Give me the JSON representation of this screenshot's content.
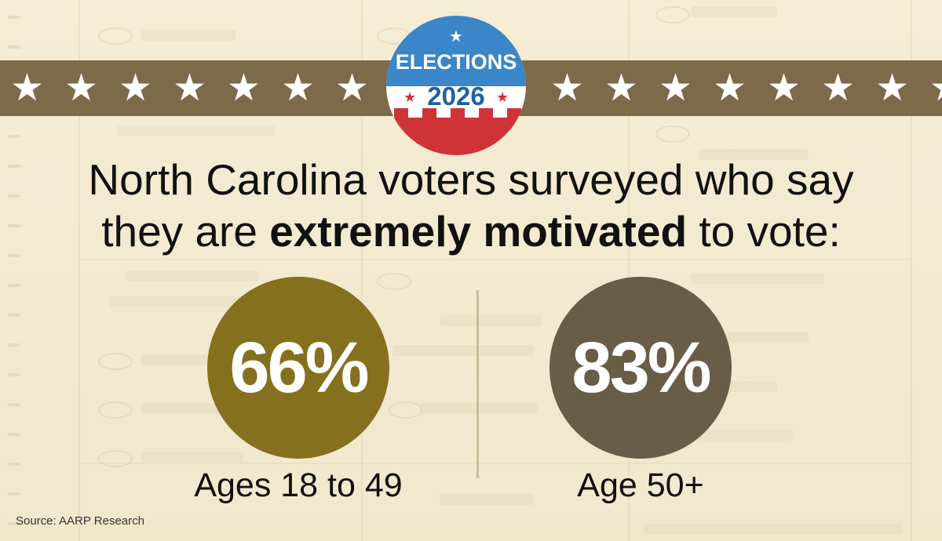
{
  "badge": {
    "word": "ELECTIONS",
    "year": "2026",
    "colors": {
      "blue": "#3a86c8",
      "red": "#cf3338",
      "navy": "#1f5fa6"
    }
  },
  "banner": {
    "color": "#7c6a4a",
    "star_icon": "star-icon"
  },
  "headline": {
    "part1": "North Carolina voters surveyed who say",
    "part2_pre": "they are ",
    "part2_bold": "extremely motivated",
    "part2_post": " to vote:"
  },
  "chart_data": {
    "type": "bar",
    "title": "North Carolina voters surveyed who say they are extremely motivated to vote:",
    "categories": [
      "Ages 18 to 49",
      "Age 50+"
    ],
    "values": [
      66,
      83
    ],
    "value_labels": [
      "66%",
      "83%"
    ],
    "colors": [
      "#85701e",
      "#6a5d48"
    ],
    "unit": "%"
  },
  "source": "Source: AARP Research"
}
